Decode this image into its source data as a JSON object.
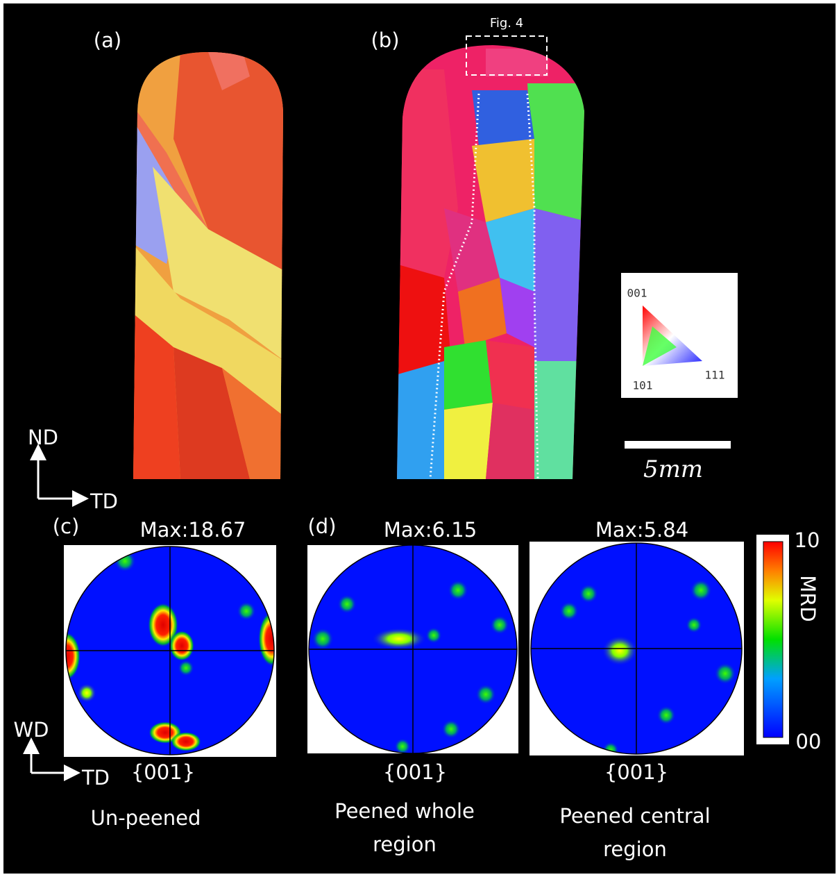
{
  "panels": {
    "a": "(a)",
    "b": "(b)",
    "c": "(c)",
    "d": "(d)"
  },
  "inset_box": "Fig. 4",
  "ipf_legend": {
    "top": "001",
    "left": "101",
    "right": "111"
  },
  "scale_bar": "5mm",
  "axes_top": {
    "vertical": "ND",
    "horizontal": "TD"
  },
  "axes_bottom": {
    "vertical": "WD",
    "horizontal": "TD"
  },
  "pole_figures": [
    {
      "max": "Max:18.67",
      "plane": "{001}",
      "caption": [
        "Un-peened"
      ]
    },
    {
      "max": "Max:6.15",
      "plane": "{001}",
      "caption": [
        "Peened whole",
        "region"
      ]
    },
    {
      "max": "Max:5.84",
      "plane": "{001}",
      "caption": [
        "Peened central",
        "region"
      ]
    }
  ],
  "colorbar": {
    "top": "10",
    "bottom": "00",
    "label": "MRD"
  }
}
